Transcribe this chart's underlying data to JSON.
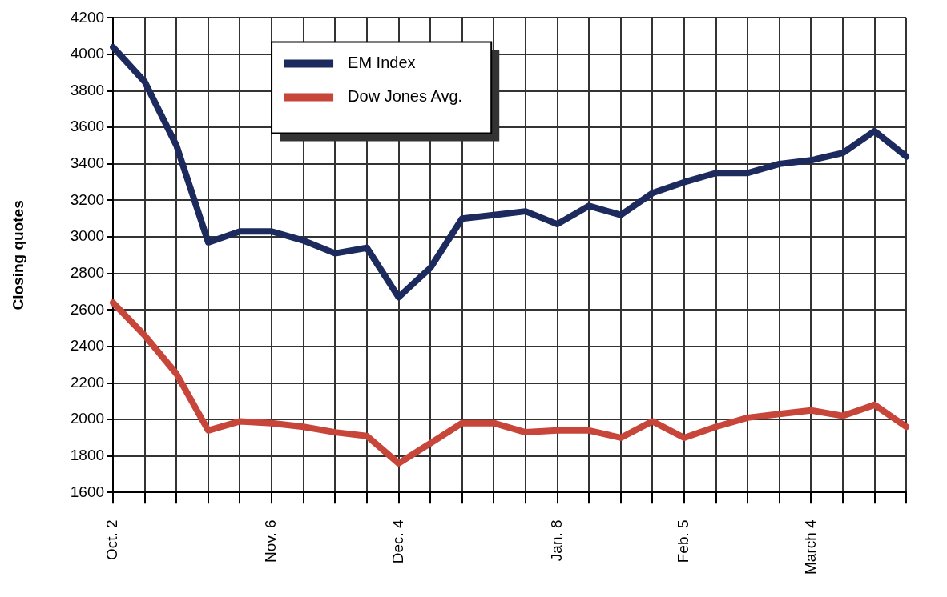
{
  "chart_data": {
    "type": "line",
    "ylabel": "Closing quotes",
    "categories": [
      "Oct. 2",
      null,
      null,
      null,
      null,
      "Nov. 6",
      null,
      null,
      null,
      "Dec. 4",
      null,
      null,
      null,
      null,
      "Jan. 8",
      null,
      null,
      null,
      "Feb. 5",
      null,
      null,
      null,
      "March 4",
      null,
      null,
      null
    ],
    "series": [
      {
        "name": "EM Index",
        "color": "#1c2a5e",
        "values": [
          4040,
          3850,
          3500,
          2970,
          3030,
          3030,
          2980,
          2910,
          2940,
          2670,
          2830,
          3100,
          3120,
          3140,
          3070,
          3170,
          3120,
          3240,
          3300,
          3350,
          3350,
          3400,
          3420,
          3460,
          3580,
          3440
        ]
      },
      {
        "name": "Dow Jones Avg.",
        "color": "#c8453a",
        "values": [
          2640,
          2460,
          2250,
          1940,
          1990,
          1980,
          1960,
          1930,
          1910,
          1760,
          1870,
          1980,
          1980,
          1930,
          1940,
          1940,
          1900,
          1990,
          1900,
          1960,
          2010,
          2030,
          2050,
          2020,
          2080,
          1960
        ]
      }
    ],
    "ylim": [
      1600,
      4200
    ],
    "yticks": [
      1600,
      1800,
      2000,
      2200,
      2400,
      2600,
      2800,
      3000,
      3200,
      3400,
      3600,
      3800,
      4000,
      4200
    ],
    "grid": true,
    "legend": "top",
    "marker": "none",
    "line_style": "solid"
  }
}
